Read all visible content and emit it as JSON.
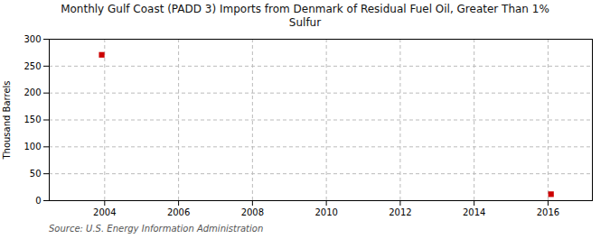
{
  "chart_data": {
    "type": "scatter",
    "title": "Monthly Gulf Coast (PADD 3) Imports from Denmark of Residual Fuel Oil, Greater Than 1%\nSulfur",
    "ylabel": "Thousand Barrels",
    "caption": "Source: U.S. Energy Information Administration",
    "x": [
      2003.92,
      2016.08
    ],
    "values": [
      271,
      12
    ],
    "color": "#cc0000",
    "marker": "square",
    "xlim": [
      2002.5,
      2017.2
    ],
    "ylim": [
      0,
      300
    ],
    "xticks": [
      2004,
      2006,
      2008,
      2010,
      2012,
      2014,
      2016
    ],
    "yticks": [
      0,
      50,
      100,
      150,
      200,
      250,
      300
    ],
    "grid": true
  }
}
